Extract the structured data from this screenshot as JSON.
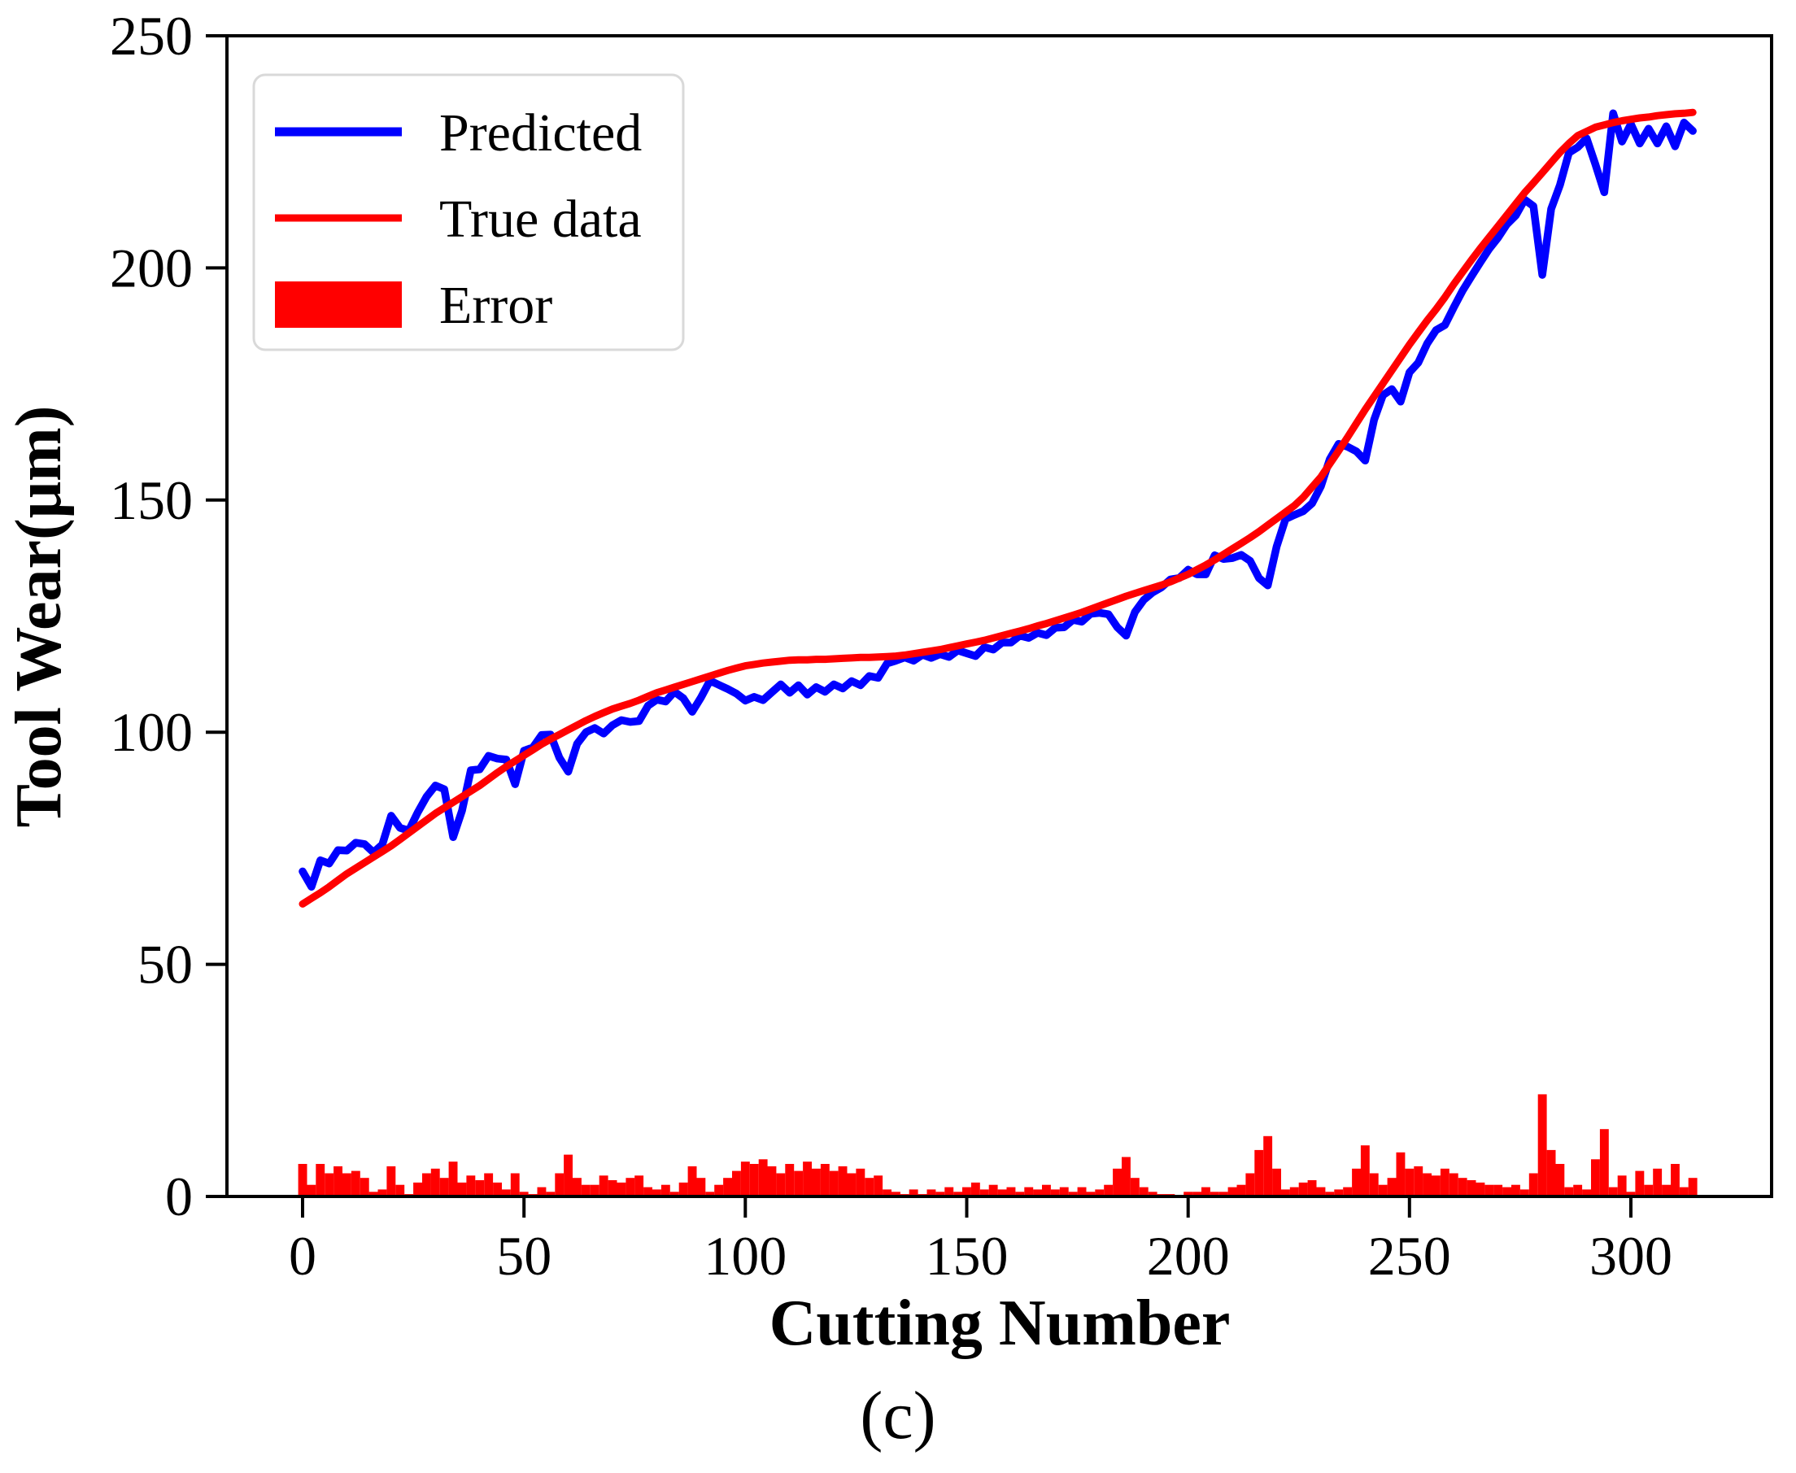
{
  "figure": {
    "caption": "(c)"
  },
  "chart_data": {
    "type": "line",
    "title": "",
    "xlabel": "Cutting Number",
    "ylabel": "Tool Wear(μm)",
    "xlim": [
      -17,
      332
    ],
    "ylim": [
      0,
      250
    ],
    "x_ticks": [
      0,
      50,
      100,
      150,
      200,
      250,
      300
    ],
    "y_ticks": [
      0,
      50,
      100,
      150,
      200,
      250
    ],
    "grid": false,
    "legend_position": "upper-left",
    "colors": {
      "predicted": "#0000ff",
      "true_data": "#ff0000",
      "error": "#ff0000",
      "axis": "#000000",
      "legend_border": "#d9d9d9"
    },
    "x": [
      0,
      2,
      4,
      6,
      8,
      10,
      12,
      14,
      16,
      18,
      20,
      22,
      24,
      26,
      28,
      30,
      32,
      34,
      36,
      38,
      40,
      42,
      44,
      46,
      48,
      50,
      52,
      54,
      56,
      58,
      60,
      62,
      64,
      66,
      68,
      70,
      72,
      74,
      76,
      78,
      80,
      82,
      84,
      86,
      88,
      90,
      92,
      94,
      96,
      98,
      100,
      102,
      104,
      106,
      108,
      110,
      112,
      114,
      116,
      118,
      120,
      122,
      124,
      126,
      128,
      130,
      132,
      134,
      136,
      138,
      140,
      142,
      144,
      146,
      148,
      150,
      152,
      154,
      156,
      158,
      160,
      162,
      164,
      166,
      168,
      170,
      172,
      174,
      176,
      178,
      180,
      182,
      184,
      186,
      188,
      190,
      192,
      194,
      196,
      198,
      200,
      202,
      204,
      206,
      208,
      210,
      212,
      214,
      216,
      218,
      220,
      222,
      224,
      226,
      228,
      230,
      232,
      234,
      236,
      238,
      240,
      242,
      244,
      246,
      248,
      250,
      252,
      254,
      256,
      258,
      260,
      262,
      264,
      266,
      268,
      270,
      272,
      274,
      276,
      278,
      280,
      282,
      284,
      286,
      288,
      290,
      292,
      294,
      296,
      298,
      300,
      302,
      304,
      306,
      308,
      310,
      312,
      314
    ],
    "series": [
      {
        "name": "Predicted",
        "type": "line",
        "color": "#0000ff",
        "values": [
          70.0,
          66.7,
          72.4,
          71.7,
          74.6,
          74.5,
          76.2,
          75.9,
          74.1,
          75.8,
          82.0,
          79.4,
          78.8,
          82.7,
          86.1,
          88.5,
          87.7,
          77.4,
          83.1,
          91.8,
          92.0,
          94.9,
          94.3,
          94.1,
          88.8,
          96.0,
          96.7,
          99.4,
          99.5,
          94.5,
          91.5,
          97.5,
          100.0,
          100.9,
          99.7,
          101.5,
          102.6,
          102.2,
          102.4,
          105.7,
          107.0,
          106.6,
          108.7,
          107.3,
          104.4,
          107.5,
          111.1,
          110.2,
          109.3,
          108.3,
          106.8,
          107.6,
          106.9,
          108.6,
          110.3,
          108.5,
          110.1,
          108.1,
          109.7,
          108.7,
          110.3,
          109.4,
          111.0,
          110.1,
          112.1,
          111.7,
          114.8,
          115.4,
          116.1,
          115.4,
          116.7,
          116.0,
          116.8,
          116.2,
          117.6,
          117.0,
          116.4,
          118.3,
          117.8,
          119.3,
          119.3,
          120.8,
          120.3,
          121.4,
          120.9,
          122.5,
          122.6,
          124.2,
          123.8,
          125.5,
          125.7,
          125.4,
          122.6,
          120.8,
          125.9,
          128.5,
          130.1,
          131.2,
          132.9,
          133.2,
          135.0,
          134.0,
          134.0,
          138.1,
          137.3,
          137.5,
          138.2,
          136.9,
          133.2,
          131.6,
          140.0,
          145.9,
          146.8,
          147.6,
          149.3,
          153.0,
          158.8,
          162.1,
          161.5,
          160.5,
          158.5,
          167.3,
          172.6,
          173.9,
          171.2,
          177.5,
          179.6,
          183.7,
          186.6,
          187.7,
          191.5,
          195.1,
          198.2,
          201.2,
          204.1,
          206.5,
          209.4,
          211.3,
          214.7,
          213.3,
          198.5,
          212.7,
          217.9,
          224.8,
          226.0,
          227.9,
          222.3,
          216.3,
          233.3,
          227.2,
          231.0,
          226.8,
          230.0,
          226.8,
          230.5,
          226.2,
          231.3,
          229.5
        ]
      },
      {
        "name": "True data",
        "type": "line",
        "color": "#ff0000",
        "values": [
          63.0,
          64.2,
          65.4,
          66.7,
          68.1,
          69.5,
          70.7,
          71.9,
          73.1,
          74.3,
          75.5,
          76.9,
          78.3,
          79.7,
          81.1,
          82.5,
          83.7,
          84.9,
          86.1,
          87.3,
          88.5,
          89.9,
          91.3,
          92.6,
          93.8,
          95.0,
          96.2,
          97.4,
          98.5,
          99.5,
          100.5,
          101.5,
          102.5,
          103.4,
          104.2,
          105.0,
          105.6,
          106.2,
          106.9,
          107.7,
          108.5,
          109.1,
          109.7,
          110.3,
          110.9,
          111.5,
          112.1,
          112.7,
          113.3,
          113.8,
          114.3,
          114.6,
          114.9,
          115.1,
          115.3,
          115.5,
          115.6,
          115.6,
          115.7,
          115.7,
          115.8,
          115.9,
          116.0,
          116.1,
          116.1,
          116.2,
          116.3,
          116.4,
          116.6,
          116.9,
          117.2,
          117.5,
          117.8,
          118.2,
          118.6,
          119.0,
          119.4,
          119.8,
          120.3,
          120.8,
          121.3,
          121.8,
          122.3,
          122.9,
          123.4,
          124.0,
          124.6,
          125.2,
          125.8,
          126.5,
          127.2,
          127.9,
          128.6,
          129.3,
          129.9,
          130.5,
          131.1,
          131.7,
          132.4,
          133.2,
          134.0,
          135.0,
          136.0,
          137.1,
          138.3,
          139.5,
          140.7,
          141.9,
          143.2,
          144.6,
          146.0,
          147.4,
          148.8,
          150.6,
          152.8,
          155.0,
          157.8,
          160.6,
          163.5,
          166.5,
          169.5,
          172.3,
          175.1,
          177.9,
          180.7,
          183.5,
          186.1,
          188.7,
          191.1,
          193.7,
          196.5,
          199.1,
          201.7,
          204.2,
          206.6,
          209.0,
          211.4,
          213.8,
          216.2,
          218.3,
          220.5,
          222.7,
          224.9,
          226.8,
          228.5,
          229.4,
          230.3,
          230.8,
          231.3,
          231.7,
          232.0,
          232.3,
          232.5,
          232.8,
          233.0,
          233.2,
          233.3,
          233.5
        ]
      },
      {
        "name": "Error",
        "type": "bar",
        "color": "#ff0000",
        "values": [
          7.0,
          2.5,
          7.0,
          5.0,
          6.5,
          5.0,
          5.5,
          4.0,
          1.0,
          1.5,
          6.5,
          2.5,
          0.5,
          3.0,
          5.0,
          6.0,
          4.0,
          7.5,
          3.0,
          4.5,
          3.5,
          5.0,
          3.0,
          1.5,
          5.0,
          1.0,
          0.5,
          2.0,
          1.0,
          5.0,
          9.0,
          4.0,
          2.5,
          2.5,
          4.5,
          3.5,
          3.0,
          4.0,
          4.5,
          2.0,
          1.5,
          2.5,
          1.0,
          3.0,
          6.5,
          4.0,
          1.0,
          2.5,
          4.0,
          5.5,
          7.5,
          7.0,
          8.0,
          6.5,
          5.0,
          7.0,
          5.5,
          7.5,
          6.0,
          7.0,
          5.5,
          6.5,
          5.0,
          6.0,
          4.0,
          4.5,
          1.5,
          1.0,
          0.5,
          1.5,
          0.5,
          1.5,
          1.0,
          2.0,
          1.0,
          2.0,
          3.0,
          1.5,
          2.5,
          1.5,
          2.0,
          1.0,
          2.0,
          1.5,
          2.5,
          1.5,
          2.0,
          1.0,
          2.0,
          1.0,
          1.5,
          2.5,
          6.0,
          8.5,
          4.0,
          2.0,
          1.0,
          0.5,
          0.5,
          0.0,
          1.0,
          1.0,
          2.0,
          1.0,
          1.0,
          2.0,
          2.5,
          5.0,
          10.0,
          13.0,
          6.0,
          1.5,
          2.0,
          3.0,
          3.5,
          2.0,
          1.0,
          1.5,
          2.0,
          6.0,
          11.0,
          5.0,
          2.5,
          4.0,
          9.5,
          6.0,
          6.5,
          5.0,
          4.5,
          6.0,
          5.0,
          4.0,
          3.5,
          3.0,
          2.5,
          2.5,
          2.0,
          2.5,
          1.5,
          5.0,
          22.0,
          10.0,
          7.0,
          2.0,
          2.5,
          1.5,
          8.0,
          14.5,
          2.0,
          4.5,
          1.0,
          5.5,
          2.5,
          6.0,
          2.5,
          7.0,
          2.0,
          4.0
        ]
      }
    ]
  }
}
